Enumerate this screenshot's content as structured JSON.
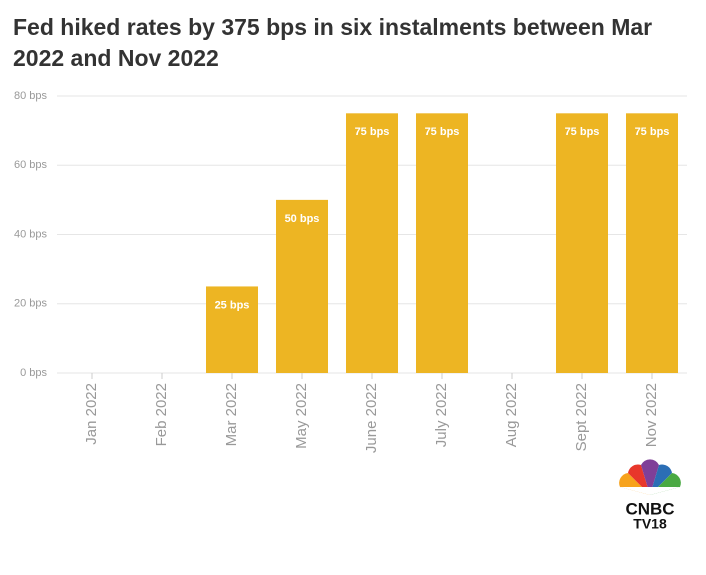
{
  "chart_data": {
    "type": "bar",
    "title": "Fed hiked rates by 375 bps in six instalments between Mar 2022 and Nov 2022",
    "categories": [
      "Jan 2022",
      "Feb 2022",
      "Mar 2022",
      "May 2022",
      "June 2022",
      "July 2022",
      "Aug 2022",
      "Sept 2022",
      "Nov 2022"
    ],
    "values": [
      0,
      0,
      25,
      50,
      75,
      75,
      0,
      75,
      75
    ],
    "value_labels": [
      null,
      null,
      "25 bps",
      "50 bps",
      "75 bps",
      "75 bps",
      null,
      "75 bps",
      "75 bps"
    ],
    "color": "#edb523",
    "ylim": [
      0,
      80
    ],
    "yticks": [
      {
        "value": 0,
        "label": "0 bps"
      },
      {
        "value": 20,
        "label": "20 bps"
      },
      {
        "value": 40,
        "label": "40 bps"
      },
      {
        "value": 60,
        "label": "60 bps"
      },
      {
        "value": 80,
        "label": "80 bps"
      }
    ],
    "grid": true
  },
  "logo": {
    "line1": "CNBC",
    "line2": "TV18"
  }
}
